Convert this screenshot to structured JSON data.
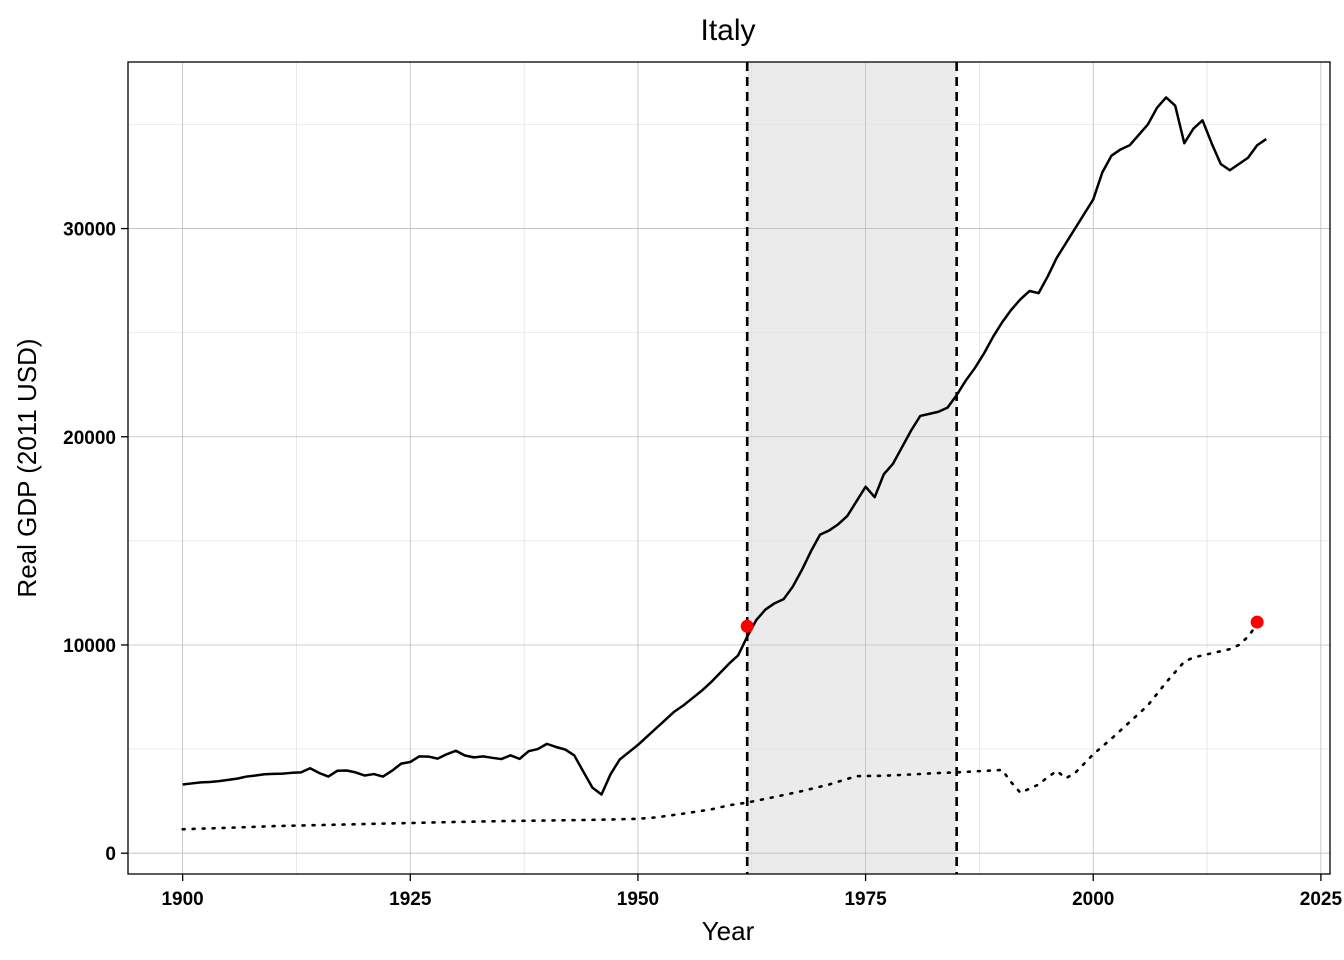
{
  "chart_data": {
    "type": "line",
    "title": "Italy",
    "xlabel": "Year",
    "ylabel": "Real GDP (2011 USD)",
    "xlim": [
      1894,
      2026
    ],
    "ylim": [
      -1000,
      38000
    ],
    "x_ticks": [
      1900,
      1925,
      1950,
      1975,
      2000,
      2025
    ],
    "y_ticks": [
      0,
      10000,
      20000,
      30000
    ],
    "grid": true,
    "colors": {
      "line": "#000000",
      "marker": "#ff0000",
      "shade": "#ebebeb",
      "grid_major": "#bdbdbd",
      "grid_minor": "#e0e0e0"
    },
    "shaded_period": {
      "start": 1962,
      "end": 1985
    },
    "vertical_lines": [
      1962,
      1985
    ],
    "series": [
      {
        "style": "solid",
        "points": [
          [
            1900,
            3300
          ],
          [
            1901,
            3350
          ],
          [
            1902,
            3400
          ],
          [
            1903,
            3420
          ],
          [
            1904,
            3460
          ],
          [
            1905,
            3520
          ],
          [
            1906,
            3580
          ],
          [
            1907,
            3680
          ],
          [
            1908,
            3730
          ],
          [
            1909,
            3790
          ],
          [
            1910,
            3810
          ],
          [
            1911,
            3820
          ],
          [
            1912,
            3860
          ],
          [
            1913,
            3880
          ],
          [
            1914,
            4080
          ],
          [
            1915,
            3850
          ],
          [
            1916,
            3680
          ],
          [
            1917,
            3960
          ],
          [
            1918,
            3970
          ],
          [
            1919,
            3880
          ],
          [
            1920,
            3730
          ],
          [
            1921,
            3800
          ],
          [
            1922,
            3680
          ],
          [
            1923,
            3960
          ],
          [
            1924,
            4300
          ],
          [
            1925,
            4380
          ],
          [
            1926,
            4650
          ],
          [
            1927,
            4640
          ],
          [
            1928,
            4540
          ],
          [
            1929,
            4750
          ],
          [
            1930,
            4920
          ],
          [
            1931,
            4690
          ],
          [
            1932,
            4600
          ],
          [
            1933,
            4650
          ],
          [
            1934,
            4580
          ],
          [
            1935,
            4520
          ],
          [
            1936,
            4700
          ],
          [
            1937,
            4530
          ],
          [
            1938,
            4900
          ],
          [
            1939,
            5000
          ],
          [
            1940,
            5250
          ],
          [
            1941,
            5100
          ],
          [
            1942,
            4980
          ],
          [
            1943,
            4700
          ],
          [
            1944,
            3920
          ],
          [
            1945,
            3150
          ],
          [
            1946,
            2820
          ],
          [
            1947,
            3800
          ],
          [
            1948,
            4500
          ],
          [
            1949,
            4850
          ],
          [
            1950,
            5200
          ],
          [
            1951,
            5600
          ],
          [
            1952,
            6000
          ],
          [
            1953,
            6400
          ],
          [
            1954,
            6800
          ],
          [
            1955,
            7100
          ],
          [
            1956,
            7450
          ],
          [
            1957,
            7800
          ],
          [
            1958,
            8200
          ],
          [
            1959,
            8650
          ],
          [
            1960,
            9100
          ],
          [
            1961,
            9500
          ],
          [
            1962,
            10400
          ],
          [
            1963,
            11200
          ],
          [
            1964,
            11700
          ],
          [
            1965,
            12000
          ],
          [
            1966,
            12200
          ],
          [
            1967,
            12800
          ],
          [
            1968,
            13600
          ],
          [
            1969,
            14500
          ],
          [
            1970,
            15300
          ],
          [
            1971,
            15500
          ],
          [
            1972,
            15800
          ],
          [
            1973,
            16200
          ],
          [
            1974,
            16900
          ],
          [
            1975,
            17600
          ],
          [
            1976,
            17100
          ],
          [
            1977,
            18200
          ],
          [
            1978,
            18700
          ],
          [
            1979,
            19500
          ],
          [
            1980,
            20300
          ],
          [
            1981,
            21000
          ],
          [
            1982,
            21100
          ],
          [
            1983,
            21200
          ],
          [
            1984,
            21400
          ],
          [
            1985,
            22000
          ],
          [
            1986,
            22700
          ],
          [
            1987,
            23300
          ],
          [
            1988,
            24000
          ],
          [
            1989,
            24800
          ],
          [
            1990,
            25500
          ],
          [
            1991,
            26100
          ],
          [
            1992,
            26600
          ],
          [
            1993,
            27000
          ],
          [
            1994,
            26900
          ],
          [
            1995,
            27700
          ],
          [
            1996,
            28600
          ],
          [
            1997,
            29300
          ],
          [
            1998,
            30000
          ],
          [
            1999,
            30700
          ],
          [
            2000,
            31400
          ],
          [
            2001,
            32700
          ],
          [
            2002,
            33500
          ],
          [
            2003,
            33800
          ],
          [
            2004,
            34000
          ],
          [
            2005,
            34500
          ],
          [
            2006,
            35000
          ],
          [
            2007,
            35800
          ],
          [
            2008,
            36300
          ],
          [
            2009,
            35900
          ],
          [
            2010,
            34100
          ],
          [
            2011,
            34800
          ],
          [
            2012,
            35200
          ],
          [
            2013,
            34100
          ],
          [
            2014,
            33100
          ],
          [
            2015,
            32800
          ],
          [
            2016,
            33100
          ],
          [
            2017,
            33400
          ],
          [
            2018,
            34000
          ],
          [
            2019,
            34300
          ]
        ]
      },
      {
        "style": "dotted",
        "points": [
          [
            1900,
            1150
          ],
          [
            1905,
            1220
          ],
          [
            1910,
            1300
          ],
          [
            1915,
            1350
          ],
          [
            1920,
            1400
          ],
          [
            1925,
            1450
          ],
          [
            1930,
            1500
          ],
          [
            1935,
            1540
          ],
          [
            1940,
            1570
          ],
          [
            1945,
            1600
          ],
          [
            1950,
            1650
          ],
          [
            1952,
            1720
          ],
          [
            1955,
            1900
          ],
          [
            1958,
            2100
          ],
          [
            1960,
            2300
          ],
          [
            1962,
            2430
          ],
          [
            1965,
            2700
          ],
          [
            1968,
            2980
          ],
          [
            1971,
            3300
          ],
          [
            1974,
            3700
          ],
          [
            1977,
            3720
          ],
          [
            1980,
            3780
          ],
          [
            1983,
            3850
          ],
          [
            1985,
            3880
          ],
          [
            1987,
            3930
          ],
          [
            1988,
            3950
          ],
          [
            1990,
            4000
          ],
          [
            1991,
            3400
          ],
          [
            1992,
            2900
          ],
          [
            1993,
            3100
          ],
          [
            1994,
            3300
          ],
          [
            1995,
            3650
          ],
          [
            1996,
            3950
          ],
          [
            1997,
            3600
          ],
          [
            1998,
            3850
          ],
          [
            2000,
            4750
          ],
          [
            2002,
            5500
          ],
          [
            2004,
            6300
          ],
          [
            2006,
            7100
          ],
          [
            2008,
            8200
          ],
          [
            2010,
            9200
          ],
          [
            2011,
            9400
          ],
          [
            2013,
            9600
          ],
          [
            2015,
            9800
          ],
          [
            2016,
            10000
          ],
          [
            2017,
            10400
          ],
          [
            2018,
            11000
          ]
        ]
      }
    ],
    "highlight_points": [
      [
        1962,
        10900
      ],
      [
        2018,
        11100
      ]
    ]
  }
}
